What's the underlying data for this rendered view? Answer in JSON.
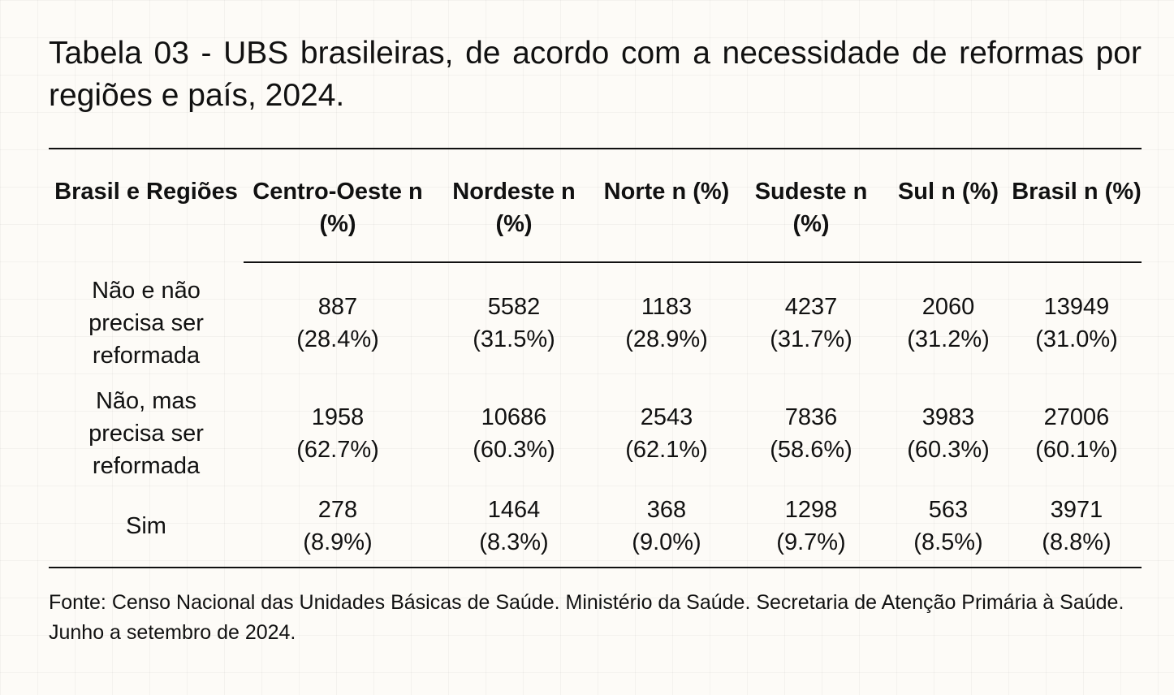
{
  "title": "Tabela 03 - UBS brasileiras, de acordo com a necessidade de reformas por regiões e país, 2024.",
  "header": {
    "row_label_line1": "Brasil e",
    "row_label_line2": "Regiões",
    "unit": "n (%)",
    "columns": [
      "Centro-Oeste",
      "Nordeste",
      "Norte",
      "Sudeste",
      "Sul",
      "Brasil"
    ]
  },
  "rows": [
    {
      "label_lines": [
        "Não e não",
        "precisa ser",
        "reformada"
      ],
      "cells": [
        {
          "n": "887",
          "pct": "(28.4%)"
        },
        {
          "n": "5582",
          "pct": "(31.5%)"
        },
        {
          "n": "1183",
          "pct": "(28.9%)"
        },
        {
          "n": "4237",
          "pct": "(31.7%)"
        },
        {
          "n": "2060",
          "pct": "(31.2%)"
        },
        {
          "n": "13949",
          "pct": "(31.0%)"
        }
      ]
    },
    {
      "label_lines": [
        "Não, mas",
        "precisa ser",
        "reformada"
      ],
      "cells": [
        {
          "n": "1958",
          "pct": "(62.7%)"
        },
        {
          "n": "10686",
          "pct": "(60.3%)"
        },
        {
          "n": "2543",
          "pct": "(62.1%)"
        },
        {
          "n": "7836",
          "pct": "(58.6%)"
        },
        {
          "n": "3983",
          "pct": "(60.3%)"
        },
        {
          "n": "27006",
          "pct": "(60.1%)"
        }
      ]
    },
    {
      "label_lines": [
        "Sim"
      ],
      "cells": [
        {
          "n": "278",
          "pct": "(8.9%)"
        },
        {
          "n": "1464",
          "pct": "(8.3%)"
        },
        {
          "n": "368",
          "pct": "(9.0%)"
        },
        {
          "n": "1298",
          "pct": "(9.7%)"
        },
        {
          "n": "563",
          "pct": "(8.5%)"
        },
        {
          "n": "3971",
          "pct": "(8.8%)"
        }
      ]
    }
  ],
  "source": "Fonte: Censo Nacional das Unidades Básicas de Saúde. Ministério da Saúde. Secretaria de Atenção Primária à Saúde. Junho a setembro de 2024."
}
